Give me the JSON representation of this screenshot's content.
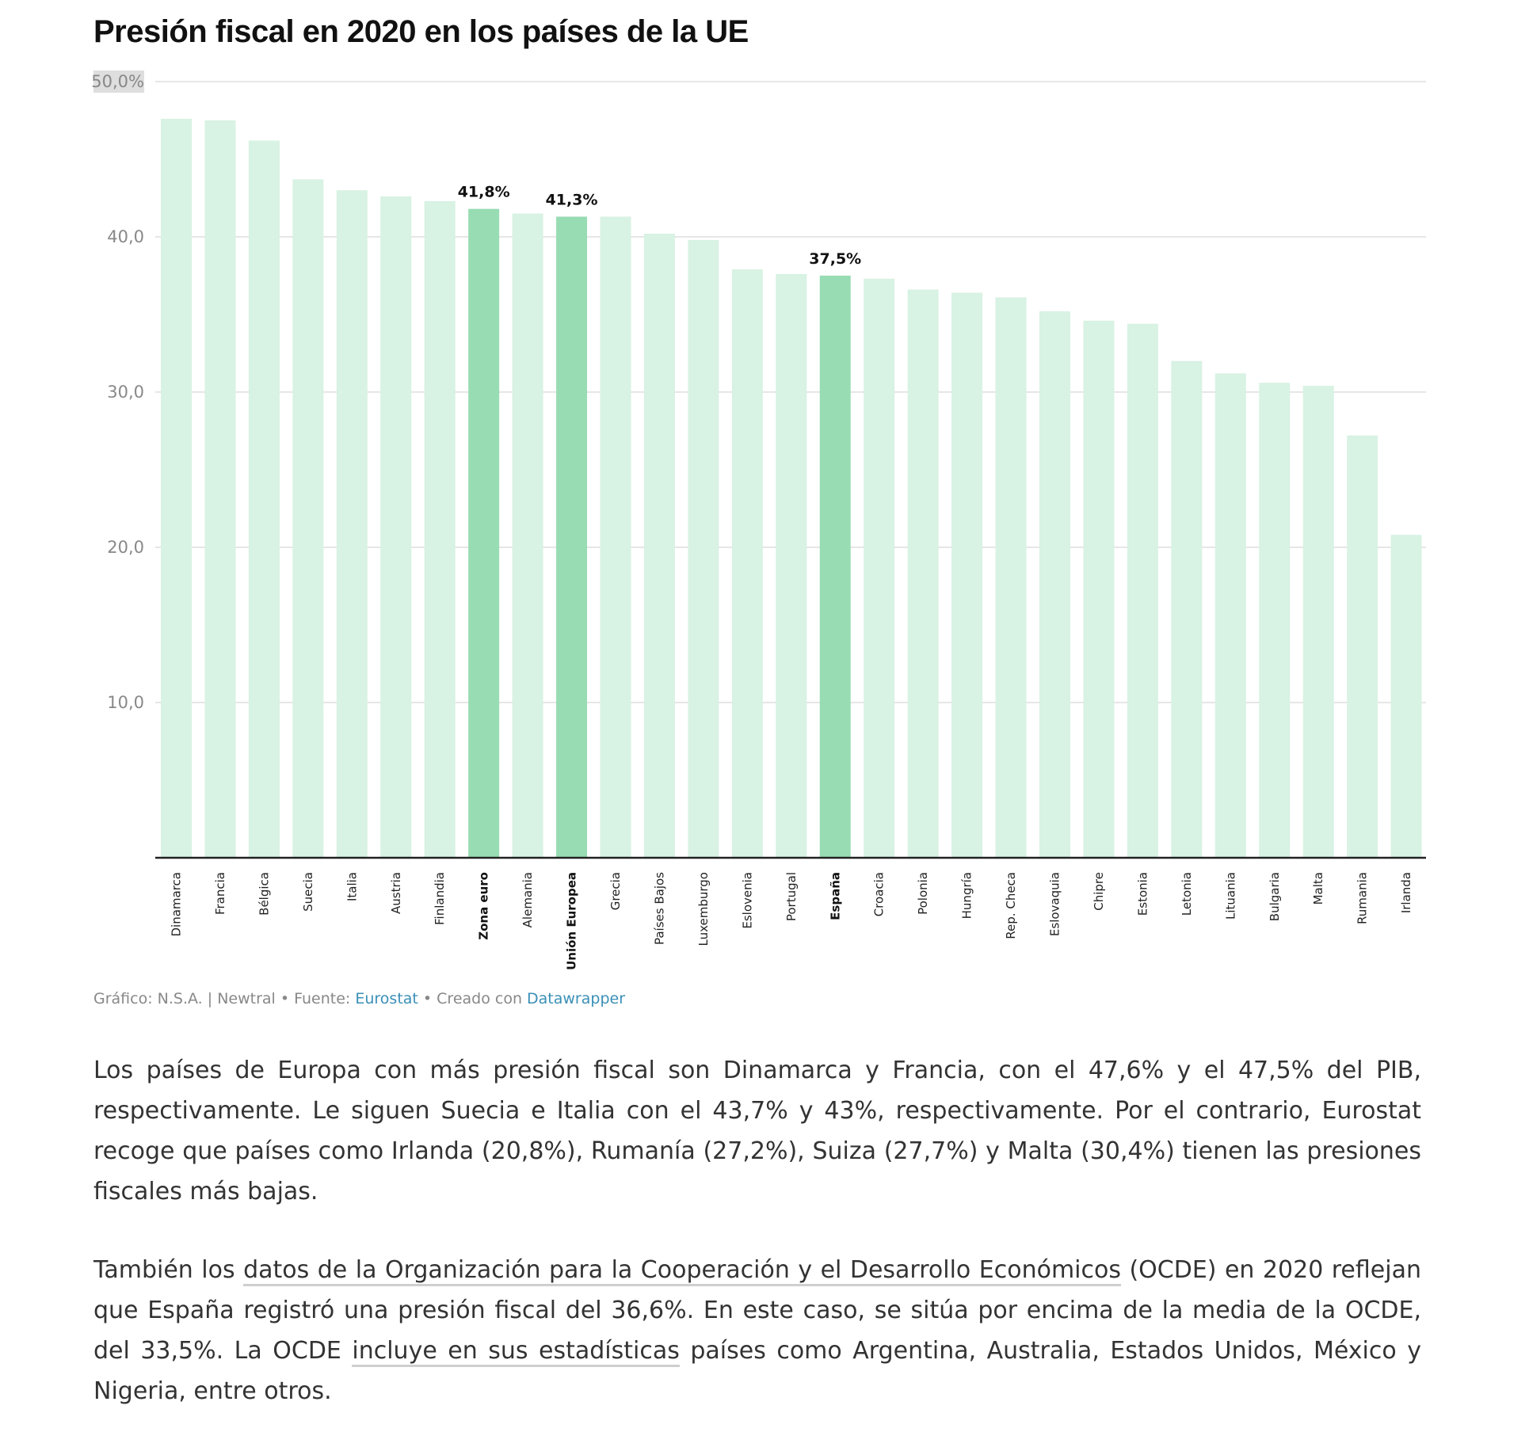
{
  "title": "Presión fiscal en 2020 en los países de la UE",
  "chart_data": {
    "type": "bar",
    "categories": [
      "Dinamarca",
      "Francia",
      "Bélgica",
      "Suecia",
      "Italia",
      "Austria",
      "Finlandia",
      "Zona euro",
      "Alemania",
      "Unión Europea",
      "Grecia",
      "Países Bajos",
      "Luxemburgo",
      "Eslovenia",
      "Portugal",
      "España",
      "Croacia",
      "Polonia",
      "Hungría",
      "Rep. Checa",
      "Eslovaquia",
      "Chipre",
      "Estonia",
      "Letonia",
      "Lituania",
      "Bulgaria",
      "Malta",
      "Rumania",
      "Irlanda"
    ],
    "values": [
      47.6,
      47.5,
      46.2,
      43.7,
      43.0,
      42.6,
      42.3,
      41.8,
      41.5,
      41.3,
      41.3,
      40.2,
      39.8,
      37.9,
      37.6,
      37.5,
      37.3,
      36.6,
      36.4,
      36.1,
      35.2,
      34.6,
      34.4,
      32.0,
      31.2,
      30.6,
      30.4,
      27.2,
      20.8
    ],
    "highlighted": [
      "Zona euro",
      "Unión Europea",
      "España"
    ],
    "value_labels": {
      "Zona euro": "41,8%",
      "Unión Europea": "41,3%",
      "España": "37,5%"
    },
    "yticks": [
      "10,0",
      "20,0",
      "30,0",
      "40,0",
      "50,0%"
    ],
    "ytick_values": [
      10,
      20,
      30,
      40,
      50
    ],
    "ylim": [
      0,
      50
    ],
    "grid": true,
    "colors": {
      "bar": "#d8f2e3",
      "highlight": "#98dcb3",
      "axis": "#222222",
      "grid": "#e6e6e6"
    }
  },
  "credit": {
    "prefix": "Gráfico: N.S.A. | Newtral • Fuente: ",
    "source": "Eurostat",
    "middle": " • Creado con ",
    "tool": "Datawrapper"
  },
  "article": {
    "p1": "Los países de Europa con más presión fiscal son Dinamarca y Francia, con el 47,6% y el 47,5% del PIB, respectivamente. Le siguen Suecia e Italia con el 43,7% y 43%, respectivamente. Por el contrario, Eurostat recoge que países como Irlanda (20,8%), Rumanía (27,2%), Suiza (27,7%) y Malta (30,4%) tienen las presiones fiscales más bajas.",
    "p2_a": "También los ",
    "p2_link1": "datos de la Organización para la Cooperación y el Desarrollo Económicos",
    "p2_b": " (OCDE) en 2020 reflejan que España registró una presión fiscal del 36,6%. En este caso, se sitúa por encima de la media de la OCDE, del 33,5%. La OCDE ",
    "p2_link2": "incluye en sus estadísticas",
    "p2_c": " países como Argentina, Australia, Estados Unidos, México y Nigeria, entre otros."
  }
}
